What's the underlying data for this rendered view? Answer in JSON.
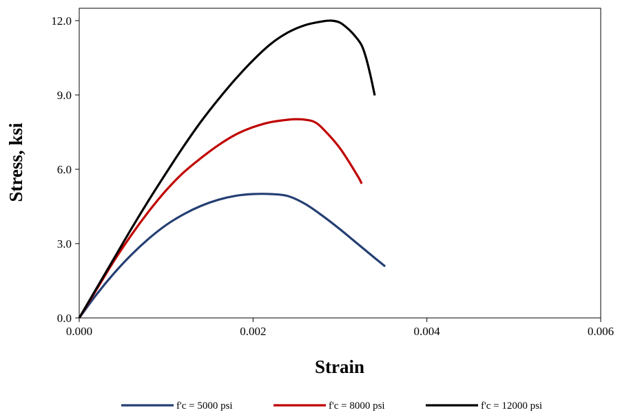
{
  "chart_data": {
    "type": "line",
    "title": "",
    "xlabel": "Strain",
    "ylabel": "Stress, ksi",
    "xlim": [
      0,
      0.006
    ],
    "ylim": [
      0,
      12.5
    ],
    "xticks": [
      0,
      0.002,
      0.004,
      0.006
    ],
    "xtick_labels": [
      "0.000",
      "0.002",
      "0.004",
      "0.006"
    ],
    "yticks": [
      0,
      3,
      6,
      9,
      12
    ],
    "ytick_labels": [
      "0.0",
      "3.0",
      "6.0",
      "9.0",
      "12.0"
    ],
    "grid": false,
    "legend_position": "bottom",
    "series": [
      {
        "name": "f'c = 5000 psi",
        "color": "#243f73",
        "x": [
          0,
          0.0002,
          0.0004,
          0.0006,
          0.0008,
          0.001,
          0.0012,
          0.0014,
          0.0016,
          0.0018,
          0.002,
          0.0022,
          0.0024,
          0.0026,
          0.0028,
          0.003,
          0.0032,
          0.0034,
          0.00352
        ],
        "y": [
          0,
          0.95,
          1.8,
          2.55,
          3.2,
          3.75,
          4.18,
          4.52,
          4.77,
          4.93,
          5.0,
          5.0,
          4.92,
          4.6,
          4.12,
          3.58,
          3.0,
          2.42,
          2.08
        ]
      },
      {
        "name": "f'c = 8000 psi",
        "color": "#c00000",
        "x": [
          0,
          0.0002,
          0.0004,
          0.0006,
          0.0008,
          0.001,
          0.0012,
          0.0014,
          0.0016,
          0.0018,
          0.002,
          0.0022,
          0.0024,
          0.0025,
          0.0026,
          0.0027,
          0.0028,
          0.003,
          0.0032,
          0.00325
        ],
        "y": [
          0,
          1.15,
          2.3,
          3.35,
          4.3,
          5.15,
          5.87,
          6.45,
          6.97,
          7.4,
          7.7,
          7.9,
          8.0,
          8.02,
          8.0,
          7.92,
          7.65,
          6.85,
          5.75,
          5.42
        ]
      },
      {
        "name": "f'c = 12000 psi",
        "color": "#000000",
        "x": [
          0,
          0.0002,
          0.0004,
          0.0006,
          0.0008,
          0.001,
          0.0012,
          0.0014,
          0.0016,
          0.0018,
          0.002,
          0.0022,
          0.0024,
          0.0026,
          0.0028,
          0.0029,
          0.003,
          0.0031,
          0.00318,
          0.00325,
          0.0033,
          0.00335,
          0.0034
        ],
        "y": [
          0,
          1.2,
          2.4,
          3.6,
          4.75,
          5.85,
          6.92,
          7.92,
          8.82,
          9.65,
          10.4,
          11.05,
          11.52,
          11.82,
          11.97,
          12.0,
          11.92,
          11.65,
          11.35,
          11.0,
          10.5,
          9.8,
          8.98
        ]
      }
    ]
  }
}
